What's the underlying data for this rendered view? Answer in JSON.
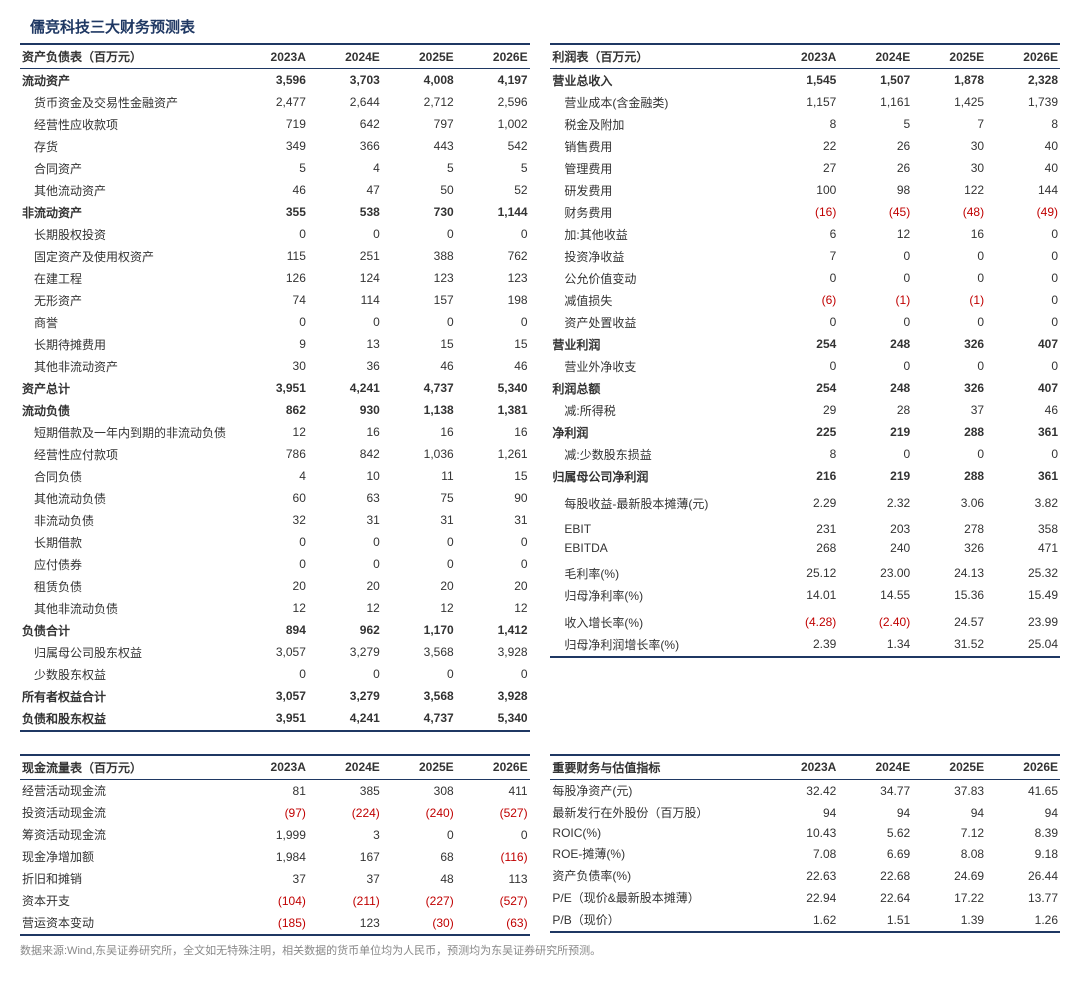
{
  "title": "儒竞科技三大财务预测表",
  "years": [
    "2023A",
    "2024E",
    "2025E",
    "2026E"
  ],
  "colors": {
    "border": "#1f3863",
    "neg": "#c00000",
    "text": "#333"
  },
  "source": "数据来源:Wind,东吴证券研究所，全文如无特殊注明，相关数据的货币单位均为人民币，预测均为东吴证券研究所预测。",
  "balance": {
    "header": "资产负债表（百万元）",
    "rows": [
      {
        "l": "流动资产",
        "v": [
          "3,596",
          "3,703",
          "4,008",
          "4,197"
        ],
        "b": 1
      },
      {
        "l": "货币资金及交易性金融资产",
        "v": [
          "2,477",
          "2,644",
          "2,712",
          "2,596"
        ],
        "i": 1
      },
      {
        "l": "经营性应收款项",
        "v": [
          "719",
          "642",
          "797",
          "1,002"
        ],
        "i": 1
      },
      {
        "l": "存货",
        "v": [
          "349",
          "366",
          "443",
          "542"
        ],
        "i": 1
      },
      {
        "l": "合同资产",
        "v": [
          "5",
          "4",
          "5",
          "5"
        ],
        "i": 1
      },
      {
        "l": "其他流动资产",
        "v": [
          "46",
          "47",
          "50",
          "52"
        ],
        "i": 1
      },
      {
        "l": "非流动资产",
        "v": [
          "355",
          "538",
          "730",
          "1,144"
        ],
        "b": 1
      },
      {
        "l": "长期股权投资",
        "v": [
          "0",
          "0",
          "0",
          "0"
        ],
        "i": 1
      },
      {
        "l": "固定资产及使用权资产",
        "v": [
          "115",
          "251",
          "388",
          "762"
        ],
        "i": 1
      },
      {
        "l": "在建工程",
        "v": [
          "126",
          "124",
          "123",
          "123"
        ],
        "i": 1
      },
      {
        "l": "无形资产",
        "v": [
          "74",
          "114",
          "157",
          "198"
        ],
        "i": 1
      },
      {
        "l": "商誉",
        "v": [
          "0",
          "0",
          "0",
          "0"
        ],
        "i": 1
      },
      {
        "l": "长期待摊费用",
        "v": [
          "9",
          "13",
          "15",
          "15"
        ],
        "i": 1
      },
      {
        "l": "其他非流动资产",
        "v": [
          "30",
          "36",
          "46",
          "46"
        ],
        "i": 1
      },
      {
        "l": "资产总计",
        "v": [
          "3,951",
          "4,241",
          "4,737",
          "5,340"
        ],
        "b": 1
      },
      {
        "l": "流动负债",
        "v": [
          "862",
          "930",
          "1,138",
          "1,381"
        ],
        "b": 1
      },
      {
        "l": "短期借款及一年内到期的非流动负债",
        "v": [
          "12",
          "16",
          "16",
          "16"
        ],
        "i": 1
      },
      {
        "l": "经营性应付款项",
        "v": [
          "786",
          "842",
          "1,036",
          "1,261"
        ],
        "i": 1
      },
      {
        "l": "合同负债",
        "v": [
          "4",
          "10",
          "11",
          "15"
        ],
        "i": 1
      },
      {
        "l": "其他流动负债",
        "v": [
          "60",
          "63",
          "75",
          "90"
        ],
        "i": 1
      },
      {
        "l": "非流动负债",
        "v": [
          "32",
          "31",
          "31",
          "31"
        ],
        "i": 1
      },
      {
        "l": "长期借款",
        "v": [
          "0",
          "0",
          "0",
          "0"
        ],
        "i": 1
      },
      {
        "l": "应付债券",
        "v": [
          "0",
          "0",
          "0",
          "0"
        ],
        "i": 1
      },
      {
        "l": "租赁负债",
        "v": [
          "20",
          "20",
          "20",
          "20"
        ],
        "i": 1
      },
      {
        "l": "其他非流动负债",
        "v": [
          "12",
          "12",
          "12",
          "12"
        ],
        "i": 1
      },
      {
        "l": "负债合计",
        "v": [
          "894",
          "962",
          "1,170",
          "1,412"
        ],
        "b": 1
      },
      {
        "l": "归属母公司股东权益",
        "v": [
          "3,057",
          "3,279",
          "3,568",
          "3,928"
        ],
        "i": 1
      },
      {
        "l": "少数股东权益",
        "v": [
          "0",
          "0",
          "0",
          "0"
        ],
        "i": 1
      },
      {
        "l": "所有者权益合计",
        "v": [
          "3,057",
          "3,279",
          "3,568",
          "3,928"
        ],
        "b": 1
      },
      {
        "l": "负债和股东权益",
        "v": [
          "3,951",
          "4,241",
          "4,737",
          "5,340"
        ],
        "b": 1,
        "last": 1
      }
    ]
  },
  "income": {
    "header": "利润表（百万元）",
    "rows": [
      {
        "l": "营业总收入",
        "v": [
          "1,545",
          "1,507",
          "1,878",
          "2,328"
        ],
        "b": 1
      },
      {
        "l": "营业成本(含金融类)",
        "v": [
          "1,157",
          "1,161",
          "1,425",
          "1,739"
        ],
        "i": 1
      },
      {
        "l": "税金及附加",
        "v": [
          "8",
          "5",
          "7",
          "8"
        ],
        "i": 1
      },
      {
        "l": "销售费用",
        "v": [
          "22",
          "26",
          "30",
          "40"
        ],
        "i": 1
      },
      {
        "l": "管理费用",
        "v": [
          "27",
          "26",
          "30",
          "40"
        ],
        "i": 1
      },
      {
        "l": "研发费用",
        "v": [
          "100",
          "98",
          "122",
          "144"
        ],
        "i": 1
      },
      {
        "l": "财务费用",
        "v": [
          "(16)",
          "(45)",
          "(48)",
          "(49)"
        ],
        "i": 1,
        "n": [
          1,
          1,
          1,
          1
        ]
      },
      {
        "l": "加:其他收益",
        "v": [
          "6",
          "12",
          "16",
          "0"
        ],
        "i": 1
      },
      {
        "l": "投资净收益",
        "v": [
          "7",
          "0",
          "0",
          "0"
        ],
        "i": 1
      },
      {
        "l": "公允价值变动",
        "v": [
          "0",
          "0",
          "0",
          "0"
        ],
        "i": 1
      },
      {
        "l": "减值损失",
        "v": [
          "(6)",
          "(1)",
          "(1)",
          "0"
        ],
        "i": 1,
        "n": [
          1,
          1,
          1,
          0
        ]
      },
      {
        "l": "资产处置收益",
        "v": [
          "0",
          "0",
          "0",
          "0"
        ],
        "i": 1
      },
      {
        "l": "营业利润",
        "v": [
          "254",
          "248",
          "326",
          "407"
        ],
        "b": 1
      },
      {
        "l": "营业外净收支",
        "v": [
          "0",
          "0",
          "0",
          "0"
        ],
        "i": 1
      },
      {
        "l": "利润总额",
        "v": [
          "254",
          "248",
          "326",
          "407"
        ],
        "b": 1
      },
      {
        "l": "减:所得税",
        "v": [
          "29",
          "28",
          "37",
          "46"
        ],
        "i": 1
      },
      {
        "l": "净利润",
        "v": [
          "225",
          "219",
          "288",
          "361"
        ],
        "b": 1
      },
      {
        "l": "减:少数股东损益",
        "v": [
          "8",
          "0",
          "0",
          "0"
        ],
        "i": 1
      },
      {
        "l": "归属母公司净利润",
        "v": [
          "216",
          "219",
          "288",
          "361"
        ],
        "b": 1
      },
      {
        "l": "",
        "v": [
          "",
          "",
          "",
          ""
        ]
      },
      {
        "l": "每股收益-最新股本摊薄(元)",
        "v": [
          "2.29",
          "2.32",
          "3.06",
          "3.82"
        ],
        "i": 1
      },
      {
        "l": "",
        "v": [
          "",
          "",
          "",
          ""
        ]
      },
      {
        "l": "EBIT",
        "v": [
          "231",
          "203",
          "278",
          "358"
        ],
        "i": 1
      },
      {
        "l": "EBITDA",
        "v": [
          "268",
          "240",
          "326",
          "471"
        ],
        "i": 1
      },
      {
        "l": "",
        "v": [
          "",
          "",
          "",
          ""
        ]
      },
      {
        "l": "毛利率(%)",
        "v": [
          "25.12",
          "23.00",
          "24.13",
          "25.32"
        ],
        "i": 1
      },
      {
        "l": "归母净利率(%)",
        "v": [
          "14.01",
          "14.55",
          "15.36",
          "15.49"
        ],
        "i": 1
      },
      {
        "l": "",
        "v": [
          "",
          "",
          "",
          ""
        ]
      },
      {
        "l": "收入增长率(%)",
        "v": [
          "(4.28)",
          "(2.40)",
          "24.57",
          "23.99"
        ],
        "i": 1,
        "n": [
          1,
          1,
          0,
          0
        ]
      },
      {
        "l": "归母净利润增长率(%)",
        "v": [
          "2.39",
          "1.34",
          "31.52",
          "25.04"
        ],
        "i": 1,
        "last": 1
      }
    ]
  },
  "cashflow": {
    "header": "现金流量表（百万元）",
    "rows": [
      {
        "l": "经营活动现金流",
        "v": [
          "81",
          "385",
          "308",
          "411"
        ]
      },
      {
        "l": "投资活动现金流",
        "v": [
          "(97)",
          "(224)",
          "(240)",
          "(527)"
        ],
        "n": [
          1,
          1,
          1,
          1
        ]
      },
      {
        "l": "筹资活动现金流",
        "v": [
          "1,999",
          "3",
          "0",
          "0"
        ]
      },
      {
        "l": "现金净增加额",
        "v": [
          "1,984",
          "167",
          "68",
          "(116)"
        ],
        "n": [
          0,
          0,
          0,
          1
        ]
      },
      {
        "l": "折旧和摊销",
        "v": [
          "37",
          "37",
          "48",
          "113"
        ]
      },
      {
        "l": "资本开支",
        "v": [
          "(104)",
          "(211)",
          "(227)",
          "(527)"
        ],
        "n": [
          1,
          1,
          1,
          1
        ]
      },
      {
        "l": "营运资本变动",
        "v": [
          "(185)",
          "123",
          "(30)",
          "(63)"
        ],
        "n": [
          1,
          0,
          1,
          1
        ],
        "last": 1
      }
    ]
  },
  "ratios": {
    "header": "重要财务与估值指标",
    "rows": [
      {
        "l": "每股净资产(元)",
        "v": [
          "32.42",
          "34.77",
          "37.83",
          "41.65"
        ]
      },
      {
        "l": "最新发行在外股份（百万股）",
        "v": [
          "94",
          "94",
          "94",
          "94"
        ]
      },
      {
        "l": "ROIC(%)",
        "v": [
          "10.43",
          "5.62",
          "7.12",
          "8.39"
        ]
      },
      {
        "l": "ROE-摊薄(%)",
        "v": [
          "7.08",
          "6.69",
          "8.08",
          "9.18"
        ]
      },
      {
        "l": "资产负债率(%)",
        "v": [
          "22.63",
          "22.68",
          "24.69",
          "26.44"
        ]
      },
      {
        "l": "P/E（现价&最新股本摊薄）",
        "v": [
          "22.94",
          "22.64",
          "17.22",
          "13.77"
        ]
      },
      {
        "l": "P/B（现价）",
        "v": [
          "1.62",
          "1.51",
          "1.39",
          "1.26"
        ],
        "last": 1
      }
    ]
  }
}
